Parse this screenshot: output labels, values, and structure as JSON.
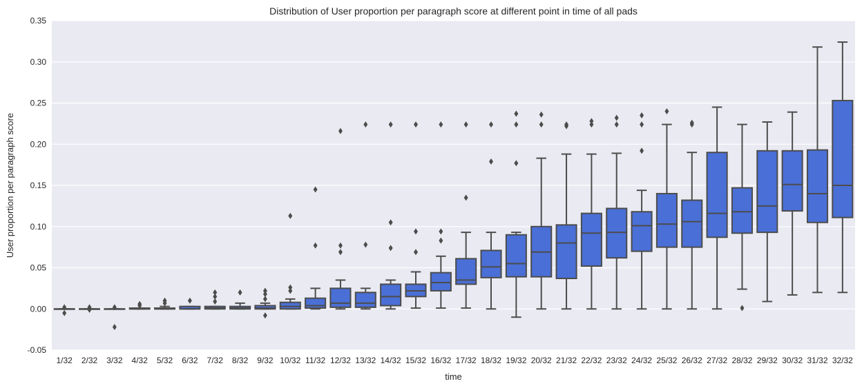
{
  "chart_data": {
    "type": "box",
    "title": "Distribution of User proportion per paragraph score at different point in time of all pads",
    "xlabel": "time",
    "ylabel": "User proportion per paragraph score",
    "ylim": [
      -0.05,
      0.35
    ],
    "yticks": [
      "-0.05",
      "0.00",
      "0.05",
      "0.10",
      "0.15",
      "0.20",
      "0.25",
      "0.30",
      "0.35"
    ],
    "grid": true,
    "box_color": "#4a6fd6",
    "line_color": "#4c4c4c",
    "background_color": "#eaeaf2",
    "categories": [
      "1/32",
      "2/32",
      "3/32",
      "4/32",
      "5/32",
      "6/32",
      "7/32",
      "8/32",
      "9/32",
      "10/32",
      "11/32",
      "12/32",
      "13/32",
      "14/32",
      "15/32",
      "16/32",
      "17/32",
      "18/32",
      "19/32",
      "20/32",
      "21/32",
      "22/32",
      "23/32",
      "24/32",
      "25/32",
      "26/32",
      "27/32",
      "28/32",
      "29/32",
      "30/32",
      "31/32",
      "32/32"
    ],
    "boxes": [
      {
        "whislo": 0.0,
        "q1": 0.0,
        "med": 0.0,
        "q3": 0.0,
        "whishi": 0.0,
        "fliers": [
          0.002,
          -0.005
        ]
      },
      {
        "whislo": 0.0,
        "q1": 0.0,
        "med": 0.0,
        "q3": 0.0,
        "whishi": 0.0,
        "fliers": [
          0.002,
          -0.001
        ]
      },
      {
        "whislo": 0.0,
        "q1": 0.0,
        "med": 0.0,
        "q3": 0.0,
        "whishi": 0.0,
        "fliers": [
          0.002,
          -0.022
        ]
      },
      {
        "whislo": 0.0,
        "q1": 0.0,
        "med": 0.0,
        "q3": 0.001,
        "whishi": 0.001,
        "fliers": [
          0.004,
          0.006
        ]
      },
      {
        "whislo": 0.0,
        "q1": 0.0,
        "med": 0.0,
        "q3": 0.001,
        "whishi": 0.003,
        "fliers": [
          0.007,
          0.01
        ]
      },
      {
        "whislo": 0.0,
        "q1": 0.0,
        "med": 0.0,
        "q3": 0.003,
        "whishi": 0.003,
        "fliers": [
          0.01
        ]
      },
      {
        "whislo": 0.0,
        "q1": 0.0,
        "med": 0.001,
        "q3": 0.003,
        "whishi": 0.003,
        "fliers": [
          0.009,
          0.015,
          0.02
        ]
      },
      {
        "whislo": 0.0,
        "q1": 0.0,
        "med": 0.001,
        "q3": 0.003,
        "whishi": 0.007,
        "fliers": [
          0.02
        ]
      },
      {
        "whislo": 0.0,
        "q1": 0.0,
        "med": 0.001,
        "q3": 0.004,
        "whishi": 0.007,
        "fliers": [
          0.012,
          0.018,
          0.022,
          -0.008
        ]
      },
      {
        "whislo": 0.0,
        "q1": 0.0,
        "med": 0.003,
        "q3": 0.008,
        "whishi": 0.012,
        "fliers": [
          0.022,
          0.026,
          0.113
        ]
      },
      {
        "whislo": 0.0,
        "q1": 0.001,
        "med": 0.004,
        "q3": 0.013,
        "whishi": 0.025,
        "fliers": [
          0.077,
          0.145
        ]
      },
      {
        "whislo": 0.0,
        "q1": 0.002,
        "med": 0.007,
        "q3": 0.025,
        "whishi": 0.035,
        "fliers": [
          0.069,
          0.077,
          0.216
        ]
      },
      {
        "whislo": 0.0,
        "q1": 0.002,
        "med": 0.007,
        "q3": 0.02,
        "whishi": 0.025,
        "fliers": [
          0.078,
          0.224
        ]
      },
      {
        "whislo": 0.0,
        "q1": 0.004,
        "med": 0.015,
        "q3": 0.03,
        "whishi": 0.035,
        "fliers": [
          0.074,
          0.105,
          0.224
        ]
      },
      {
        "whislo": 0.001,
        "q1": 0.015,
        "med": 0.022,
        "q3": 0.03,
        "whishi": 0.045,
        "fliers": [
          0.069,
          0.094,
          0.224
        ]
      },
      {
        "whislo": 0.001,
        "q1": 0.022,
        "med": 0.032,
        "q3": 0.044,
        "whishi": 0.064,
        "fliers": [
          0.083,
          0.094,
          0.224
        ]
      },
      {
        "whislo": 0.001,
        "q1": 0.03,
        "med": 0.035,
        "q3": 0.061,
        "whishi": 0.093,
        "fliers": [
          0.135,
          0.224
        ]
      },
      {
        "whislo": 0.0,
        "q1": 0.038,
        "med": 0.051,
        "q3": 0.071,
        "whishi": 0.093,
        "fliers": [
          0.179,
          0.224
        ]
      },
      {
        "whislo": -0.01,
        "q1": 0.039,
        "med": 0.055,
        "q3": 0.09,
        "whishi": 0.093,
        "fliers": [
          0.177,
          0.224,
          0.237
        ]
      },
      {
        "whislo": 0.0,
        "q1": 0.039,
        "med": 0.069,
        "q3": 0.1,
        "whishi": 0.183,
        "fliers": [
          0.224,
          0.236
        ]
      },
      {
        "whislo": 0.0,
        "q1": 0.037,
        "med": 0.08,
        "q3": 0.102,
        "whishi": 0.188,
        "fliers": [
          0.222,
          0.224
        ]
      },
      {
        "whislo": 0.0,
        "q1": 0.052,
        "med": 0.092,
        "q3": 0.116,
        "whishi": 0.188,
        "fliers": [
          0.224,
          0.228
        ]
      },
      {
        "whislo": 0.0,
        "q1": 0.062,
        "med": 0.093,
        "q3": 0.122,
        "whishi": 0.189,
        "fliers": [
          0.224,
          0.232
        ]
      },
      {
        "whislo": 0.0,
        "q1": 0.07,
        "med": 0.101,
        "q3": 0.118,
        "whishi": 0.144,
        "fliers": [
          0.192,
          0.224,
          0.235
        ]
      },
      {
        "whislo": 0.0,
        "q1": 0.075,
        "med": 0.103,
        "q3": 0.14,
        "whishi": 0.224,
        "fliers": [
          0.24
        ]
      },
      {
        "whislo": 0.0,
        "q1": 0.075,
        "med": 0.106,
        "q3": 0.132,
        "whishi": 0.19,
        "fliers": [
          0.224,
          0.226
        ]
      },
      {
        "whislo": 0.0,
        "q1": 0.087,
        "med": 0.116,
        "q3": 0.19,
        "whishi": 0.245,
        "fliers": []
      },
      {
        "whislo": 0.024,
        "q1": 0.092,
        "med": 0.118,
        "q3": 0.147,
        "whishi": 0.224,
        "fliers": [
          0.001
        ]
      },
      {
        "whislo": 0.009,
        "q1": 0.093,
        "med": 0.125,
        "q3": 0.192,
        "whishi": 0.227,
        "fliers": []
      },
      {
        "whislo": 0.017,
        "q1": 0.119,
        "med": 0.151,
        "q3": 0.192,
        "whishi": 0.239,
        "fliers": []
      },
      {
        "whislo": 0.02,
        "q1": 0.105,
        "med": 0.14,
        "q3": 0.193,
        "whishi": 0.318,
        "fliers": []
      },
      {
        "whislo": 0.02,
        "q1": 0.111,
        "med": 0.15,
        "q3": 0.253,
        "whishi": 0.324,
        "fliers": []
      }
    ]
  }
}
